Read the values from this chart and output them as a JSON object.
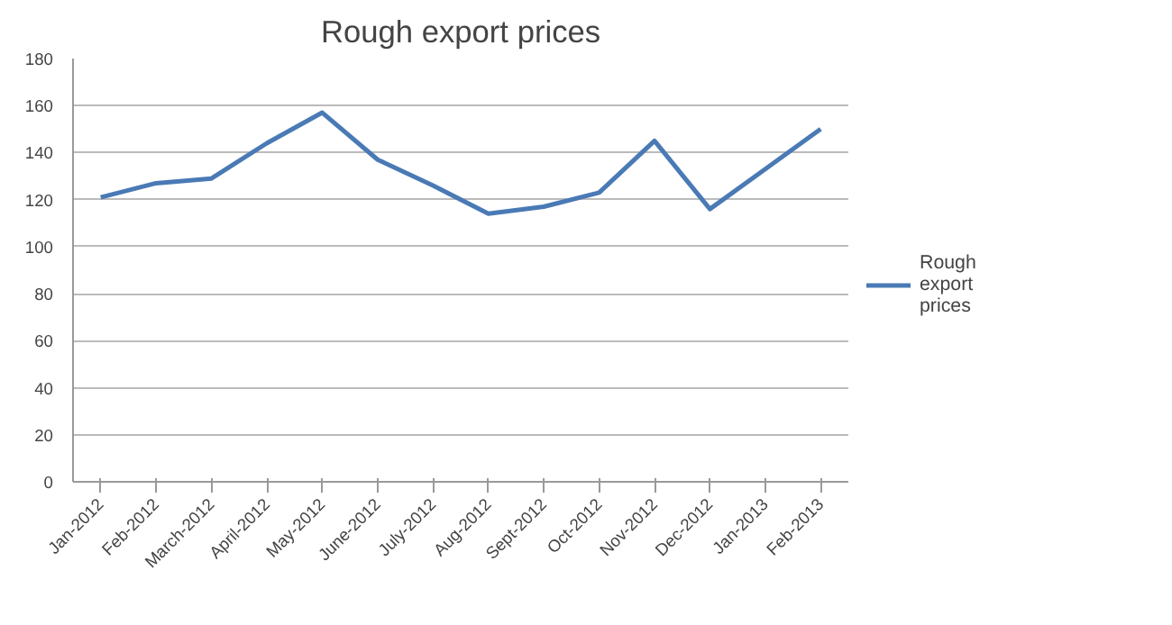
{
  "chart_data": {
    "type": "line",
    "title": "Rough export prices",
    "categories": [
      "Jan-2012",
      "Feb-2012",
      "March-2012",
      "April-2012",
      "May-2012",
      "June-2012",
      "July-2012",
      "Aug-2012",
      "Sept-2012",
      "Oct-2012",
      "Nov-2012",
      "Dec-2012",
      "Jan-2013",
      "Feb-2013"
    ],
    "series": [
      {
        "name": "Rough export prices",
        "color": "#4a7ab5",
        "values": [
          121,
          127,
          129,
          144,
          157,
          137,
          126,
          114,
          117,
          123,
          145,
          116,
          133,
          150
        ]
      }
    ],
    "ylim": [
      0,
      180
    ],
    "yticks": [
      0,
      20,
      40,
      60,
      80,
      100,
      120,
      140,
      160,
      180
    ],
    "grid": "y",
    "legend": "right",
    "marker": "none",
    "line_style": "solid"
  }
}
